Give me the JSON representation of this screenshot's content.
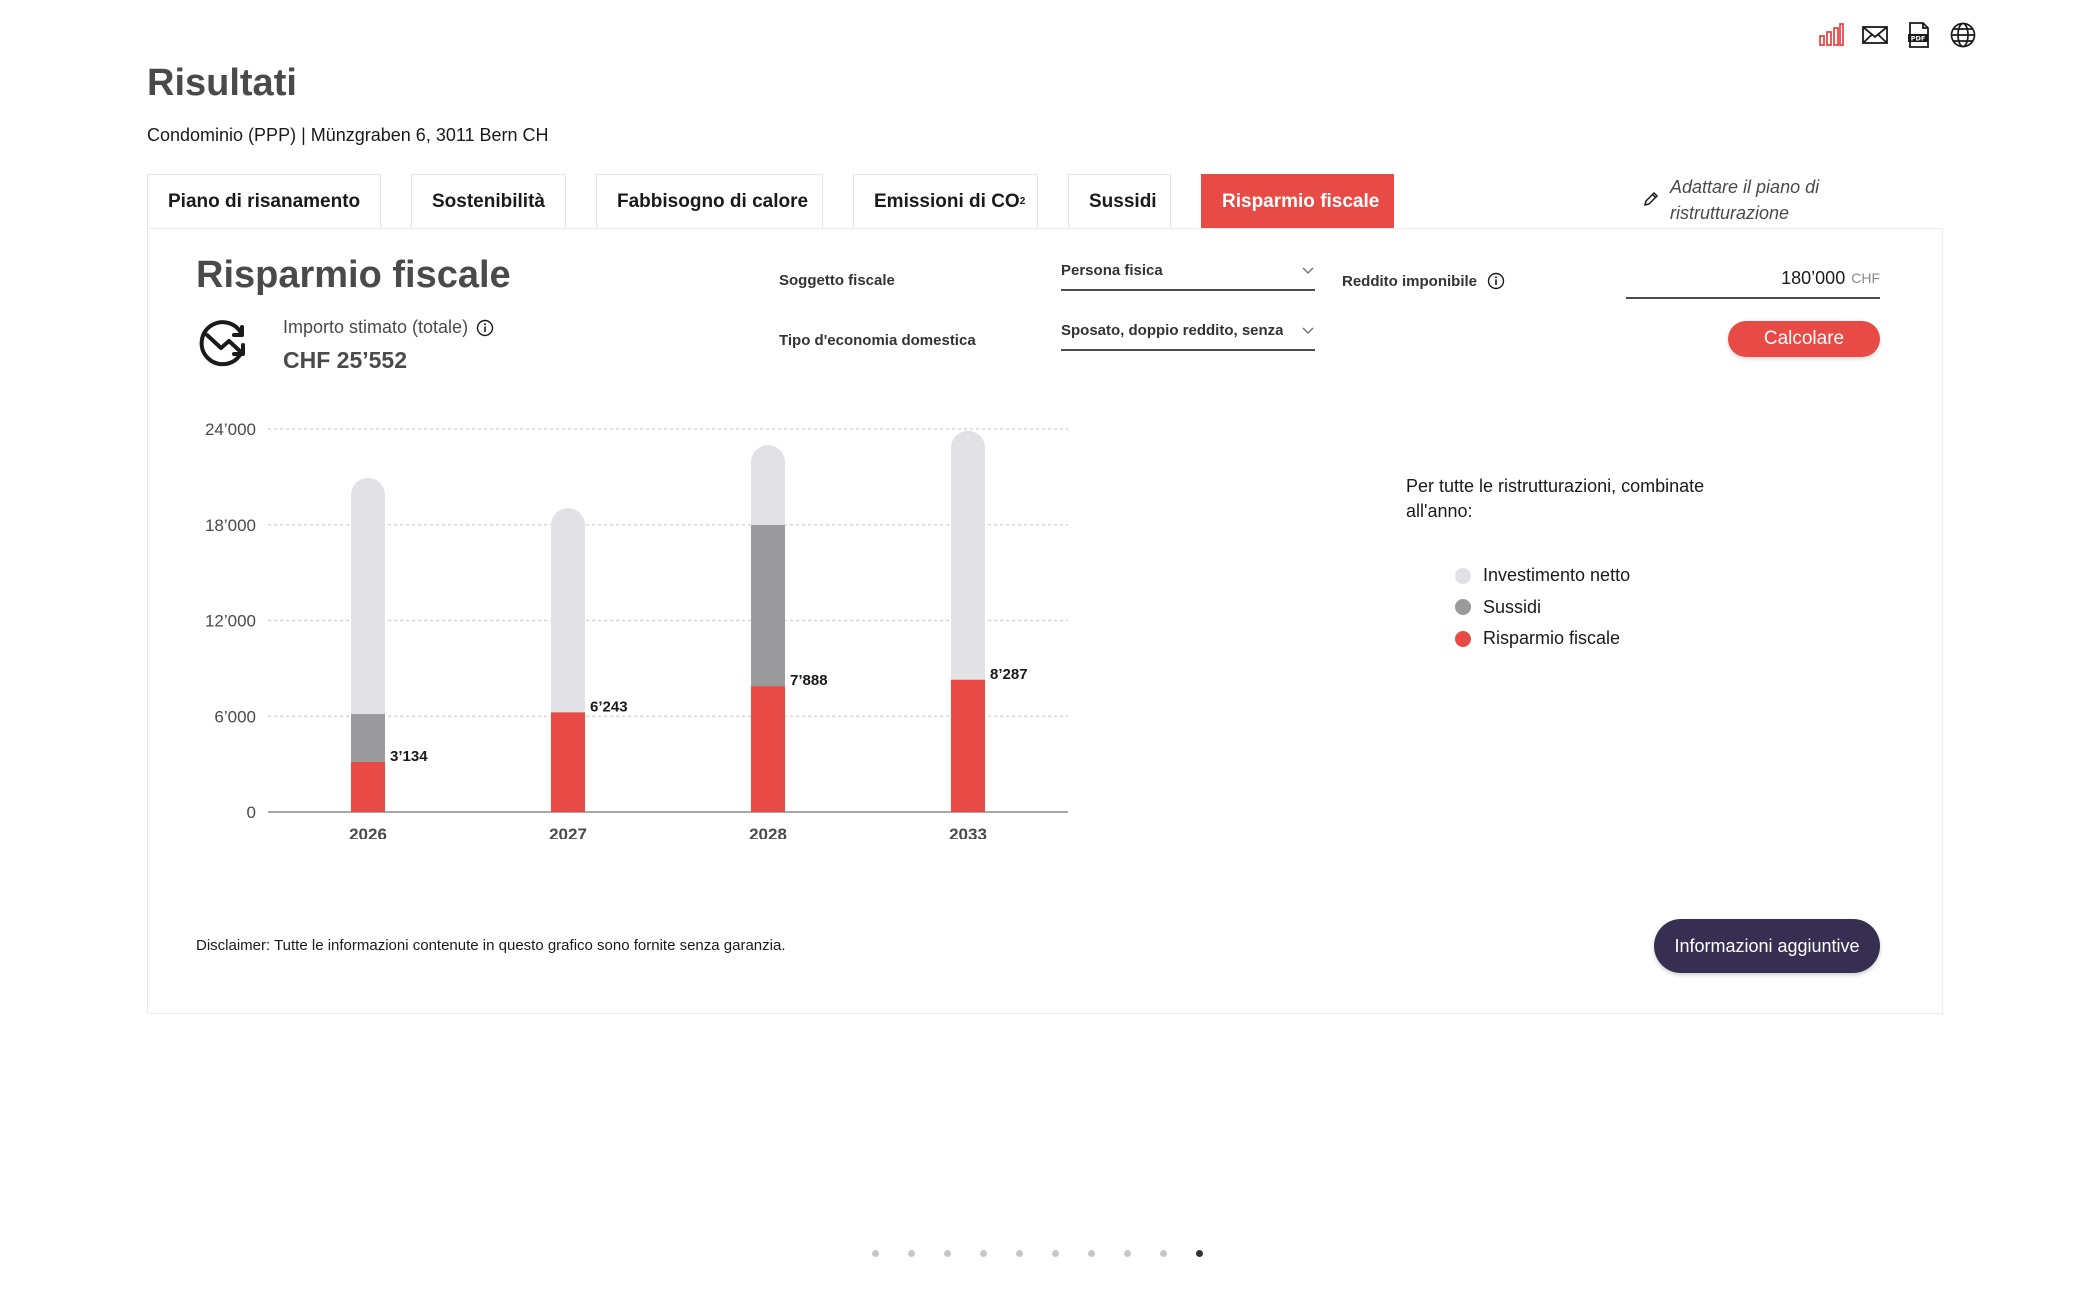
{
  "header": {
    "title": "Risultati",
    "subtitle": "Condominio (PPP) | Münzgraben 6, 3011 Bern CH",
    "icons": [
      "bar-chart-icon",
      "mail-icon",
      "pdf-icon",
      "globe-icon"
    ]
  },
  "tabs": [
    {
      "label": "Piano di risanamento",
      "active": false
    },
    {
      "label": "Sostenibilità",
      "active": false
    },
    {
      "label": "Fabbisogno di calore",
      "active": false
    },
    {
      "label": "Emissioni di CO",
      "sub": "2",
      "active": false
    },
    {
      "label": "Sussidi",
      "active": false
    },
    {
      "label": "Risparmio fiscale",
      "active": true
    }
  ],
  "edit_plan": {
    "label": "Adattare il piano di ristrutturazione"
  },
  "section": {
    "title": "Risparmio fiscale",
    "estimate_label": "Importo stimato (totale)",
    "estimate_value": "CHF 25’552"
  },
  "form": {
    "tax_subject_label": "Soggetto fiscale",
    "tax_subject_value": "Persona fisica",
    "household_label": "Tipo d'economia domestica",
    "household_value": "Sposato, doppio reddito, senza figli",
    "income_label": "Reddito imponibile",
    "income_value": "180’000",
    "income_currency": "CHF",
    "calculate_label": "Calcolare"
  },
  "legend": {
    "intro": "Per tutte le ristrutturazioni, combinate all'anno:",
    "items": [
      {
        "label": "Investimento netto",
        "color": "#e2e2e6"
      },
      {
        "label": "Sussidi",
        "color": "#9a9a9c"
      },
      {
        "label": "Risparmio fiscale",
        "color": "#e84a45"
      }
    ]
  },
  "chart_data": {
    "type": "bar",
    "stacked": true,
    "categories": [
      "2026",
      "2027",
      "2028",
      "2033"
    ],
    "series": [
      {
        "name": "Risparmio fiscale",
        "values": [
          3134,
          6243,
          7888,
          8287
        ],
        "color": "#e84a45"
      },
      {
        "name": "Sussidi",
        "values": [
          3000,
          0,
          10100,
          0
        ],
        "color": "#9a9a9c"
      },
      {
        "name": "Investimento netto",
        "values": [
          14800,
          12800,
          5000,
          15600
        ],
        "color": "#e2e2e6"
      }
    ],
    "data_labels": [
      "3’134",
      "6’243",
      "7’888",
      "8’287"
    ],
    "y_ticks": [
      0,
      6000,
      12000,
      18000,
      24000
    ],
    "y_tick_labels": [
      "0",
      "6’000",
      "12’000",
      "18’000",
      "24’000"
    ],
    "ylim": [
      0,
      24000
    ],
    "grid": true
  },
  "footer": {
    "disclaimer": "Disclaimer: Tutte le informazioni contenute in questo grafico sono fornite senza garanzia.",
    "more_info_label": "Informazioni aggiuntive"
  },
  "pager": {
    "count": 10,
    "active": 9
  }
}
